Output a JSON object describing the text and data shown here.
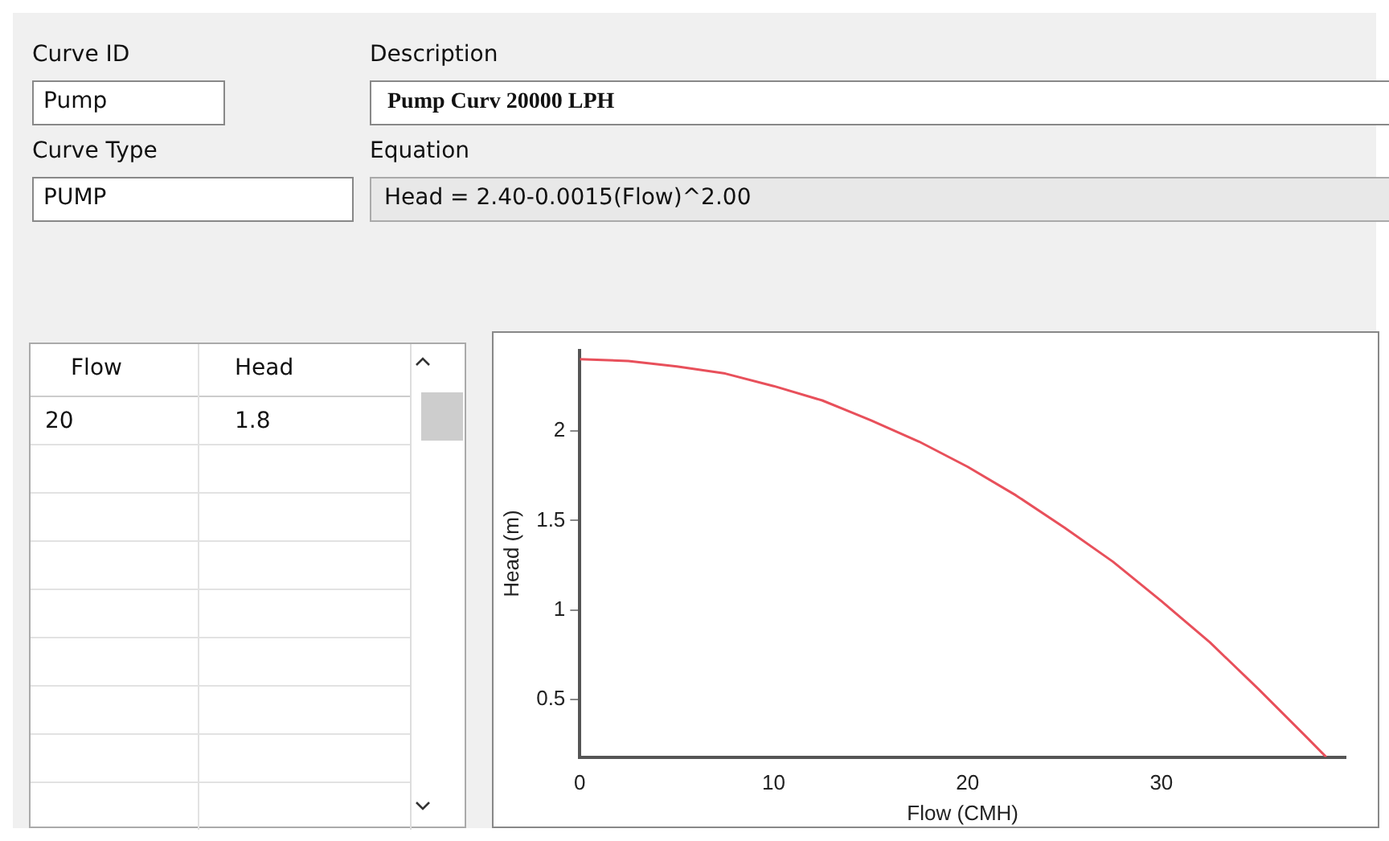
{
  "chart_data": {
    "type": "line",
    "xlabel": "Flow (CMH)",
    "ylabel": "Head (m)",
    "x": [
      0,
      2.5,
      5,
      7.5,
      10,
      12.5,
      15,
      17.5,
      20,
      22.5,
      25,
      27.5,
      30,
      32.5,
      35,
      37.5,
      38.5
    ],
    "series": [
      {
        "color": "#e8505b",
        "values": [
          2.4,
          2.39,
          2.36,
          2.32,
          2.25,
          2.17,
          2.06,
          1.94,
          1.8,
          1.64,
          1.46,
          1.27,
          1.05,
          0.82,
          0.56,
          0.29,
          0.18
        ]
      }
    ],
    "xlim": [
      0,
      39.5
    ],
    "xticks": [
      0,
      10,
      20,
      30
    ],
    "ylim": [
      0.18,
      2.45
    ],
    "yticks": [
      0.5,
      1,
      1.5,
      2
    ],
    "grid": false,
    "legend": false,
    "marker": "none",
    "line_style": "solid",
    "annotations": [
      "Curve ID",
      "Pump",
      "Description",
      "Pump Curv 20000 LPH",
      "Curve Type",
      "PUMP",
      "Equation",
      "Head = 2.40-0.0015(Flow)^2.00",
      "Flow",
      "Head",
      "20",
      "1.8"
    ]
  }
}
